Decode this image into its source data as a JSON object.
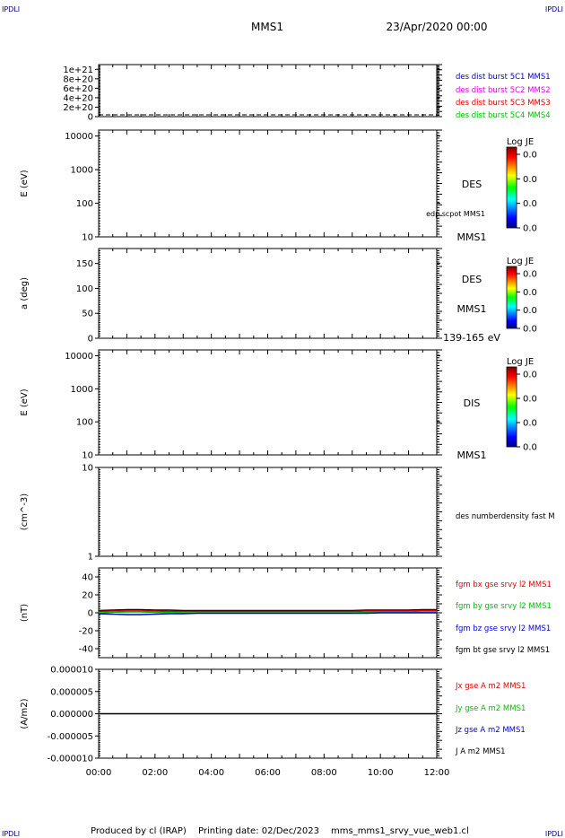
{
  "corner_label": "IPDLI",
  "header": {
    "spacecraft": "MMS1",
    "date": "23/Apr/2020 00:00"
  },
  "footer": {
    "produced_by": "Produced by cl (IRAP)",
    "printing_date": "Printing date: 02/Dec/2023",
    "file": "mms_mms1_srvy_vue_web1.cl"
  },
  "colors": {
    "red": "#e00000",
    "green": "#00c000",
    "blue": "#0000e0",
    "magenta": "#e000e0",
    "black": "#000000"
  },
  "chart_data": [
    {
      "type": "line",
      "panel": "des-dist-burst",
      "ylim": [
        0,
        1.1e+21
      ],
      "ytick_labels": [
        {
          "v": 1e+21,
          "label": "1e+21"
        },
        {
          "v": 8e+20,
          "label": "8e+20"
        },
        {
          "v": 6e+20,
          "label": "6e+20"
        },
        {
          "v": 4e+20,
          "label": "4e+20"
        },
        {
          "v": 2e+20,
          "label": "2e+20"
        },
        {
          "v": 0,
          "label": "0"
        }
      ],
      "dashed_line_value": 0,
      "legend": [
        {
          "label": "des dist burst 5C1 MMS1",
          "color": "#0000e0"
        },
        {
          "label": "des dist burst 5C2 MMS2",
          "color": "#e000e0"
        },
        {
          "label": "des dist burst 5C3 MMS3",
          "color": "#e00000"
        },
        {
          "label": "des dist burst 5C4 MMS4",
          "color": "#00c000"
        }
      ]
    },
    {
      "type": "heatmap",
      "panel": "des-energy",
      "ylabel": "E (eV)",
      "yscale": "log",
      "ylim": [
        10,
        15000
      ],
      "ytick_labels": [
        {
          "v": 10000,
          "label": "10000"
        },
        {
          "v": 1000,
          "label": "1000"
        },
        {
          "v": 100,
          "label": "100"
        },
        {
          "v": 10,
          "label": "10"
        }
      ],
      "side_labels": [
        "DES",
        "edp scpot MMS1",
        "MMS1"
      ],
      "colorbar": {
        "title": "Log JE",
        "ticks": [
          "0.0",
          "0.0",
          "0.0",
          "0.0"
        ]
      }
    },
    {
      "type": "heatmap",
      "panel": "des-pitch-angle",
      "ylabel": "a (deg)",
      "ylim": [
        0,
        180
      ],
      "ytick_labels": [
        {
          "v": 150,
          "label": "150"
        },
        {
          "v": 100,
          "label": "100"
        },
        {
          "v": 50,
          "label": "50"
        },
        {
          "v": 0,
          "label": "0"
        }
      ],
      "side_labels": [
        "DES",
        "MMS1",
        "139-165 eV"
      ],
      "colorbar": {
        "title": "Log JE",
        "ticks": [
          "0.0",
          "0.0",
          "0.0",
          "0.0"
        ]
      }
    },
    {
      "type": "heatmap",
      "panel": "dis-energy",
      "ylabel": "E (eV)",
      "yscale": "log",
      "ylim": [
        10,
        15000
      ],
      "ytick_labels": [
        {
          "v": 10000,
          "label": "10000"
        },
        {
          "v": 1000,
          "label": "1000"
        },
        {
          "v": 100,
          "label": "100"
        },
        {
          "v": 10,
          "label": "10"
        }
      ],
      "side_labels": [
        "DIS",
        "MMS1"
      ],
      "colorbar": {
        "title": "Log JE",
        "ticks": [
          "0.0",
          "0.0",
          "0.0",
          "0.0"
        ]
      }
    },
    {
      "type": "line",
      "panel": "des-density",
      "ylabel": "(cm^-3)",
      "yscale": "log",
      "ylim": [
        1,
        10
      ],
      "ytick_labels": [
        {
          "v": 10,
          "label": "10"
        },
        {
          "v": 1,
          "label": "1"
        }
      ],
      "legend": [
        {
          "label": "des numberdensity fast M",
          "color": "#000000"
        }
      ]
    },
    {
      "type": "line",
      "panel": "fgm-b",
      "ylabel": "(nT)",
      "ylim": [
        -50,
        50
      ],
      "ytick_labels": [
        {
          "v": 40,
          "label": "40"
        },
        {
          "v": 20,
          "label": "20"
        },
        {
          "v": 0,
          "label": "0"
        },
        {
          "v": -20,
          "label": "-20"
        },
        {
          "v": -40,
          "label": "-40"
        }
      ],
      "x": [
        0,
        0.5,
        1,
        1.5,
        2,
        2.5,
        3,
        3.5,
        4,
        4.5,
        5,
        5.5,
        6,
        6.5,
        7,
        7.5,
        8,
        8.5,
        9,
        9.5,
        10,
        10.5,
        11,
        11.5,
        12
      ],
      "series": [
        {
          "name": "fgm bt gse srvy l2 MMS1",
          "color": "#000000",
          "values": [
            2.5,
            3,
            3.5,
            3.5,
            3,
            3,
            2.5,
            2.5,
            2.5,
            2.5,
            2.5,
            2.5,
            2.5,
            2.5,
            2.5,
            2.5,
            2.5,
            2.5,
            2.5,
            3,
            3,
            3,
            3,
            3.5,
            3.5
          ]
        },
        {
          "name": "fgm bx gse srvy l2 MMS1",
          "color": "#e00000",
          "values": [
            1.5,
            2,
            2,
            2,
            2,
            1.5,
            1.5,
            1.5,
            1.5,
            1.5,
            1.5,
            1.5,
            1.5,
            1.5,
            1.5,
            1.5,
            1.5,
            1.5,
            1.5,
            2,
            2,
            2,
            2,
            2.5,
            2.5
          ]
        },
        {
          "name": "fgm by gse srvy l2 MMS1",
          "color": "#00c000",
          "values": [
            0,
            0.5,
            1,
            1,
            0.5,
            0.5,
            0,
            0,
            0,
            0,
            0,
            0,
            0,
            0,
            0,
            0,
            0,
            0,
            0,
            0.5,
            0.5,
            0.5,
            0.5,
            1,
            1
          ]
        },
        {
          "name": "fgm bz gse srvy l2 MMS1",
          "color": "#0000e0",
          "values": [
            -1,
            -1.5,
            -2,
            -2,
            -1.5,
            -1,
            -1,
            -0.5,
            -0.5,
            -0.5,
            -0.5,
            -0.5,
            -0.5,
            -0.5,
            -0.5,
            -0.5,
            -0.5,
            -0.5,
            -0.5,
            -0.5,
            0,
            0,
            0,
            0,
            0
          ]
        }
      ],
      "legend": [
        {
          "label": "fgm bx gse srvy l2 MMS1",
          "color": "#e00000"
        },
        {
          "label": "fgm by gse srvy l2 MMS1",
          "color": "#00c000"
        },
        {
          "label": "fgm bz gse srvy l2 MMS1",
          "color": "#0000e0"
        },
        {
          "label": "fgm bt gse srvy l2 MMS1",
          "color": "#000000"
        }
      ]
    },
    {
      "type": "line",
      "panel": "current-density",
      "ylabel": "(A/m2)",
      "ylim": [
        -1e-05,
        1e-05
      ],
      "ytick_labels": [
        {
          "v": 1e-05,
          "label": "0.000010"
        },
        {
          "v": 5e-06,
          "label": "0.000005"
        },
        {
          "v": 0,
          "label": "0.000000"
        },
        {
          "v": -5e-06,
          "label": "-0.000005"
        },
        {
          "v": -1e-05,
          "label": "-0.000010"
        }
      ],
      "x": [
        0,
        12
      ],
      "series": [
        {
          "values": [
            0,
            0
          ],
          "color": "#000000"
        }
      ],
      "legend": [
        {
          "label": "Jx gse A m2 MMS1",
          "color": "#e00000"
        },
        {
          "label": "Jy gse A m2 MMS1",
          "color": "#00c000"
        },
        {
          "label": "Jz gse A m2 MMS1",
          "color": "#0000e0"
        },
        {
          "label": "J A m2 MMS1",
          "color": "#000000"
        }
      ]
    }
  ],
  "xaxis": {
    "xlim": [
      0,
      12
    ],
    "tick_labels": [
      {
        "v": 0,
        "label": "00:00"
      },
      {
        "v": 2,
        "label": "02:00"
      },
      {
        "v": 4,
        "label": "04:00"
      },
      {
        "v": 6,
        "label": "06:00"
      },
      {
        "v": 8,
        "label": "08:00"
      },
      {
        "v": 10,
        "label": "10:00"
      },
      {
        "v": 12,
        "label": "12:00"
      }
    ]
  }
}
